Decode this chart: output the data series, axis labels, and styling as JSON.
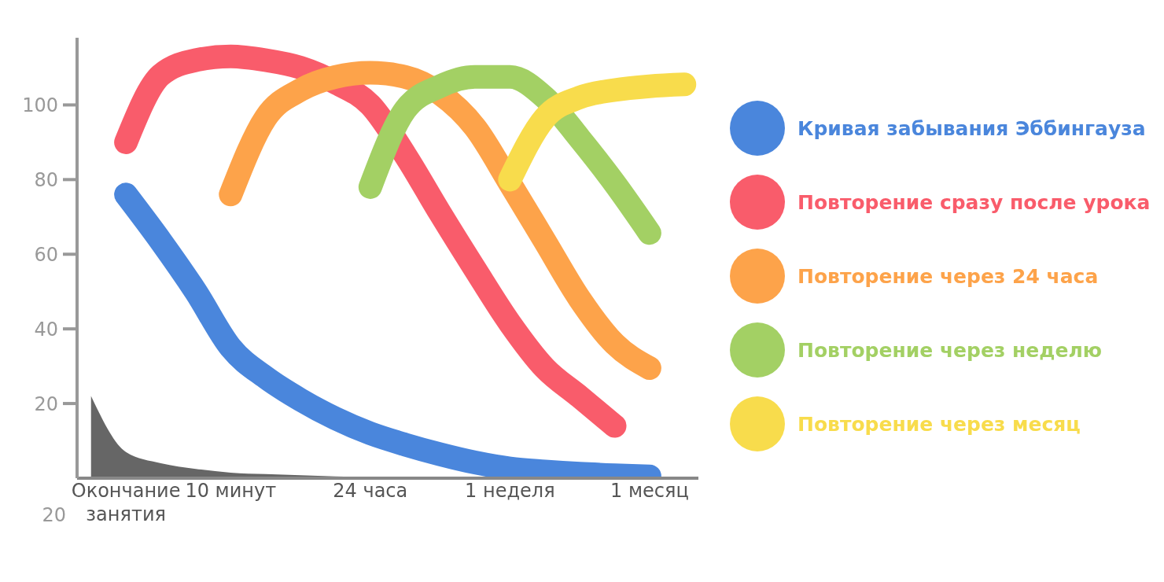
{
  "chart_data": {
    "type": "line",
    "categories": [
      null,
      "Окончание занятия",
      null,
      null,
      "10 минут",
      null,
      null,
      null,
      "24 часа",
      null,
      null,
      null,
      "1 неделя",
      null,
      null,
      null,
      "1 месяц",
      null
    ],
    "ylim": [
      0,
      118
    ],
    "yticks": [
      20,
      40,
      60,
      80,
      100
    ],
    "annotations": [
      "20"
    ],
    "grid": false,
    "legend": "right",
    "marker": "none",
    "line_style": "solid",
    "series": [
      {
        "type": "area",
        "color": "#555555",
        "values": [
          22,
          7,
          4,
          2.5,
          1.5,
          1.1,
          0.8,
          0.5,
          0.3,
          0.2,
          0.1,
          0,
          0,
          0,
          0,
          0,
          0,
          null
        ]
      },
      {
        "name": "Кривая забывания Эббингауза",
        "color": "#4a86dc",
        "values": [
          null,
          76,
          63.5,
          50,
          35,
          27,
          21,
          16,
          12,
          9,
          6.4,
          4.2,
          2.6,
          1.8,
          1.2,
          0.8,
          0.5,
          null
        ]
      },
      {
        "name": "Повторение сразу после урока",
        "color": "#f95c6b",
        "values": [
          null,
          90,
          108,
          112,
          113,
          112,
          110,
          106,
          100,
          86.6,
          71,
          56,
          41.5,
          29.5,
          21.8,
          14,
          null,
          null
        ]
      },
      {
        "name": "Повторение через 24 часа",
        "color": "#fda34a",
        "values": [
          null,
          null,
          null,
          null,
          76,
          96.5,
          104,
          107.5,
          108.6,
          107.5,
          103,
          94,
          79,
          63.5,
          48,
          36,
          29.5,
          null
        ]
      },
      {
        "name": "Повторение через неделю",
        "color": "#a3d064",
        "values": [
          null,
          null,
          null,
          null,
          null,
          null,
          null,
          null,
          78,
          98.7,
          105,
          107.5,
          107.5,
          102,
          91,
          79,
          65.7,
          null
        ]
      },
      {
        "name": "Повторение через месяц",
        "color": "#f8dc4c",
        "values": [
          null,
          null,
          null,
          null,
          null,
          null,
          null,
          null,
          null,
          null,
          null,
          null,
          80,
          96.5,
          102,
          104,
          105,
          105.5
        ]
      }
    ]
  }
}
